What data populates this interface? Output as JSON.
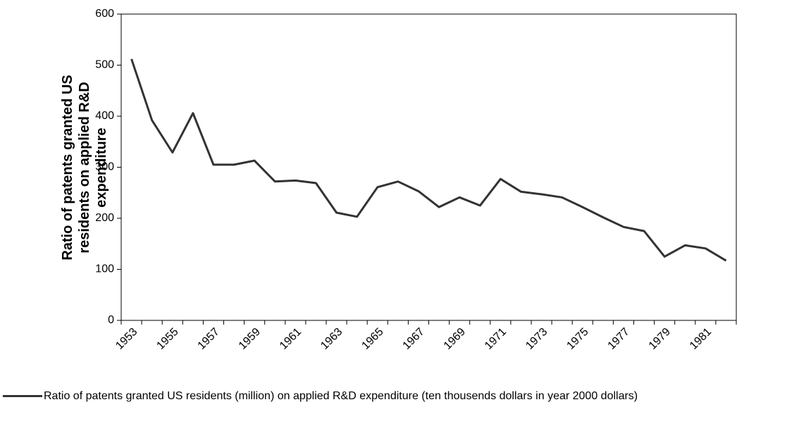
{
  "chart_data": {
    "type": "line",
    "y_label": "Ratio of patents granted US residents on applied R&D expenditure",
    "categories": [
      "1953",
      null,
      "1955",
      null,
      "1957",
      null,
      "1959",
      null,
      "1961",
      null,
      "1963",
      null,
      "1965",
      null,
      "1967",
      null,
      "1969",
      null,
      "1971",
      null,
      "1973",
      null,
      "1975",
      null,
      "1977",
      null,
      "1979",
      null,
      "1981",
      null
    ],
    "series": [
      {
        "name": "Ratio of patents granted US residents (million) on applied R&D expenditure (ten thousends dollars in year 2000 dollars)",
        "color": "#333333",
        "values": [
          512,
          392,
          329,
          406,
          305,
          305,
          313,
          272,
          274,
          269,
          211,
          203,
          261,
          272,
          253,
          222,
          241,
          225,
          277,
          252,
          247,
          241,
          222,
          202,
          183,
          175,
          125,
          147,
          141,
          117
        ]
      }
    ],
    "ylim": [
      0,
      600
    ],
    "yticks": [
      0,
      100,
      200,
      300,
      400,
      500,
      600
    ],
    "grid": false,
    "legend": "bottom"
  }
}
